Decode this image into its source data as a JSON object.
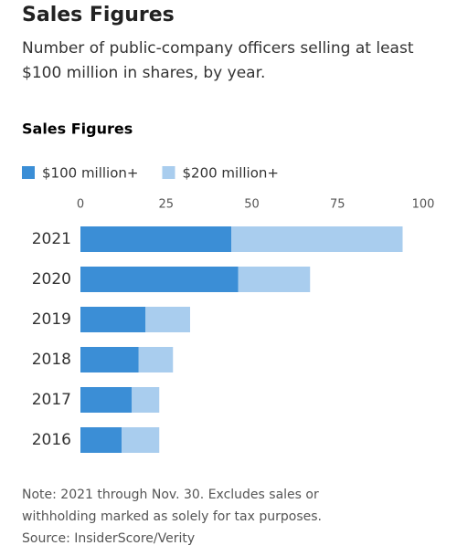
{
  "header": {
    "title": "Sales Figures",
    "subtitle": "Number of public-company officers selling at least $100 million in shares, by year."
  },
  "chart_data": {
    "type": "bar",
    "orientation": "horizontal",
    "stacked": true,
    "title": "Sales Figures",
    "categories": [
      "2021",
      "2020",
      "2019",
      "2018",
      "2017",
      "2016"
    ],
    "series": [
      {
        "name": "$100 million+",
        "color": "#3b8ed6",
        "values": [
          44,
          46,
          19,
          17,
          15,
          12
        ]
      },
      {
        "name": "$200 million+",
        "color": "#a9cdee",
        "values": [
          50,
          21,
          13,
          10,
          8,
          11
        ]
      }
    ],
    "xlim": [
      0,
      100
    ],
    "xticks": [
      0,
      25,
      50,
      75,
      100
    ],
    "grid": false,
    "legend": "top-left"
  },
  "footer": {
    "note": "Note: 2021 through Nov. 30. Excludes sales or withholding marked as solely for tax purposes.",
    "source": "Source: InsiderScore/Verity"
  }
}
